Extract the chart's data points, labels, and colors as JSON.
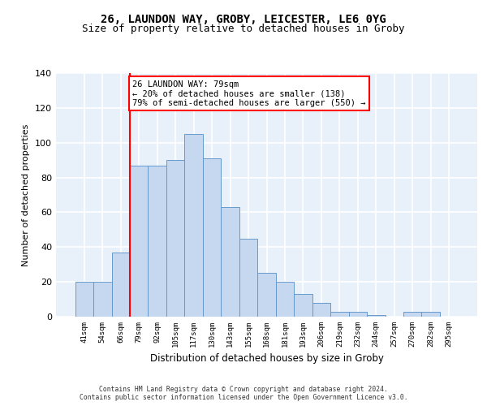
{
  "title1": "26, LAUNDON WAY, GROBY, LEICESTER, LE6 0YG",
  "title2": "Size of property relative to detached houses in Groby",
  "xlabel": "Distribution of detached houses by size in Groby",
  "ylabel": "Number of detached properties",
  "categories": [
    "41sqm",
    "54sqm",
    "66sqm",
    "79sqm",
    "92sqm",
    "105sqm",
    "117sqm",
    "130sqm",
    "143sqm",
    "155sqm",
    "168sqm",
    "181sqm",
    "193sqm",
    "206sqm",
    "219sqm",
    "232sqm",
    "244sqm",
    "257sqm",
    "270sqm",
    "282sqm",
    "295sqm"
  ],
  "values": [
    20,
    20,
    37,
    87,
    87,
    90,
    105,
    91,
    63,
    45,
    25,
    20,
    13,
    8,
    3,
    3,
    1,
    0,
    3,
    3,
    0
  ],
  "bar_color": "#c5d8f0",
  "bar_edge_color": "#6699cc",
  "red_line_index": 3,
  "annotation_text": "26 LAUNDON WAY: 79sqm\n← 20% of detached houses are smaller (138)\n79% of semi-detached houses are larger (550) →",
  "annotation_box_color": "white",
  "annotation_box_edge": "red",
  "ylim": [
    0,
    140
  ],
  "yticks": [
    0,
    20,
    40,
    60,
    80,
    100,
    120,
    140
  ],
  "footer1": "Contains HM Land Registry data © Crown copyright and database right 2024.",
  "footer2": "Contains public sector information licensed under the Open Government Licence v3.0.",
  "background_color": "#e8f0fa",
  "grid_color": "#ffffff",
  "title1_fontsize": 10,
  "title2_fontsize": 9
}
